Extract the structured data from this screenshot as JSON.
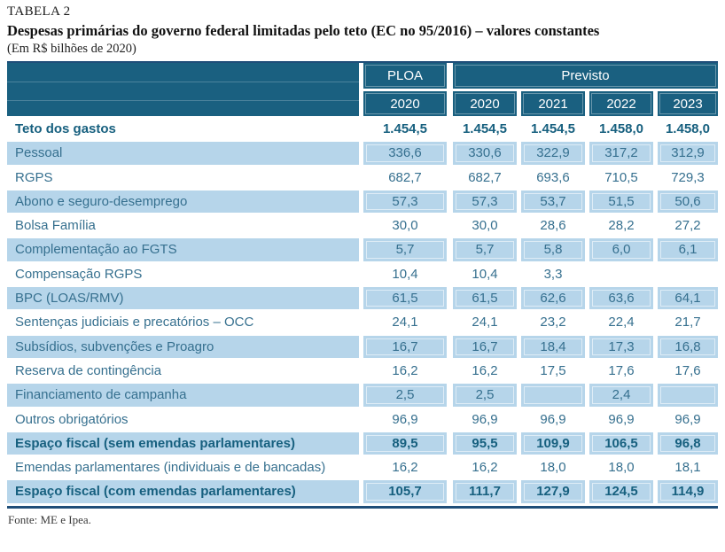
{
  "title": {
    "label": "TABELA 2",
    "heading": "Despesas primárias do governo federal limitadas pelo teto (EC no 95/2016) – valores constantes",
    "subtitle": "(Em R$ bilhões de 2020)"
  },
  "table": {
    "group_headers": [
      {
        "label": "PLOA",
        "span": 1
      },
      {
        "label": "Previsto",
        "span": 4
      }
    ],
    "year_headers": [
      "2020",
      "2020",
      "2021",
      "2022",
      "2023"
    ],
    "rows": [
      {
        "label": "Teto dos gastos",
        "values": [
          "1.454,5",
          "1.454,5",
          "1.454,5",
          "1.458,0",
          "1.458,0"
        ],
        "bold": true,
        "shaded": false
      },
      {
        "label": "Pessoal",
        "values": [
          "336,6",
          "330,6",
          "322,9",
          "317,2",
          "312,9"
        ],
        "bold": false,
        "shaded": true
      },
      {
        "label": "RGPS",
        "values": [
          "682,7",
          "682,7",
          "693,6",
          "710,5",
          "729,3"
        ],
        "bold": false,
        "shaded": false
      },
      {
        "label": "Abono e seguro-desemprego",
        "values": [
          "57,3",
          "57,3",
          "53,7",
          "51,5",
          "50,6"
        ],
        "bold": false,
        "shaded": true
      },
      {
        "label": "Bolsa Família",
        "values": [
          "30,0",
          "30,0",
          "28,6",
          "28,2",
          "27,2"
        ],
        "bold": false,
        "shaded": false
      },
      {
        "label": "Complementação ao FGTS",
        "values": [
          "5,7",
          "5,7",
          "5,8",
          "6,0",
          "6,1"
        ],
        "bold": false,
        "shaded": true
      },
      {
        "label": "Compensação RGPS",
        "values": [
          "10,4",
          "10,4",
          "3,3",
          "",
          ""
        ],
        "bold": false,
        "shaded": false
      },
      {
        "label": "BPC (LOAS/RMV)",
        "values": [
          "61,5",
          "61,5",
          "62,6",
          "63,6",
          "64,1"
        ],
        "bold": false,
        "shaded": true
      },
      {
        "label": "Sentenças judiciais e precatórios – OCC",
        "values": [
          "24,1",
          "24,1",
          "23,2",
          "22,4",
          "21,7"
        ],
        "bold": false,
        "shaded": false
      },
      {
        "label": "Subsídios, subvenções e Proagro",
        "values": [
          "16,7",
          "16,7",
          "18,4",
          "17,3",
          "16,8"
        ],
        "bold": false,
        "shaded": true
      },
      {
        "label": "Reserva de contingência",
        "values": [
          "16,2",
          "16,2",
          "17,5",
          "17,6",
          "17,6"
        ],
        "bold": false,
        "shaded": false
      },
      {
        "label": "Financiamento de campanha",
        "values": [
          "2,5",
          "2,5",
          "",
          "2,4",
          ""
        ],
        "bold": false,
        "shaded": true
      },
      {
        "label": "Outros obrigatórios",
        "values": [
          "96,9",
          "96,9",
          "96,9",
          "96,9",
          "96,9"
        ],
        "bold": false,
        "shaded": false
      },
      {
        "label": "Espaço fiscal (sem emendas parlamentares)",
        "values": [
          "89,5",
          "95,5",
          "109,9",
          "106,5",
          "96,8"
        ],
        "bold": true,
        "shaded": true
      },
      {
        "label": "Emendas parlamentares (individuais e de bancadas)",
        "values": [
          "16,2",
          "16,2",
          "18,0",
          "18,0",
          "18,1"
        ],
        "bold": false,
        "shaded": false
      },
      {
        "label": "Espaço fiscal (com emendas parlamentares)",
        "values": [
          "105,7",
          "111,7",
          "127,9",
          "124,5",
          "114,9"
        ],
        "bold": true,
        "shaded": true
      }
    ]
  },
  "footer": {
    "source": "Fonte: ME e Ipea."
  },
  "colors": {
    "header_bg": "#1a6080",
    "row_shade": "#b6d5ea",
    "text_regular": "#36708f",
    "text_bold": "#17607f",
    "rule": "#1f4e79"
  }
}
